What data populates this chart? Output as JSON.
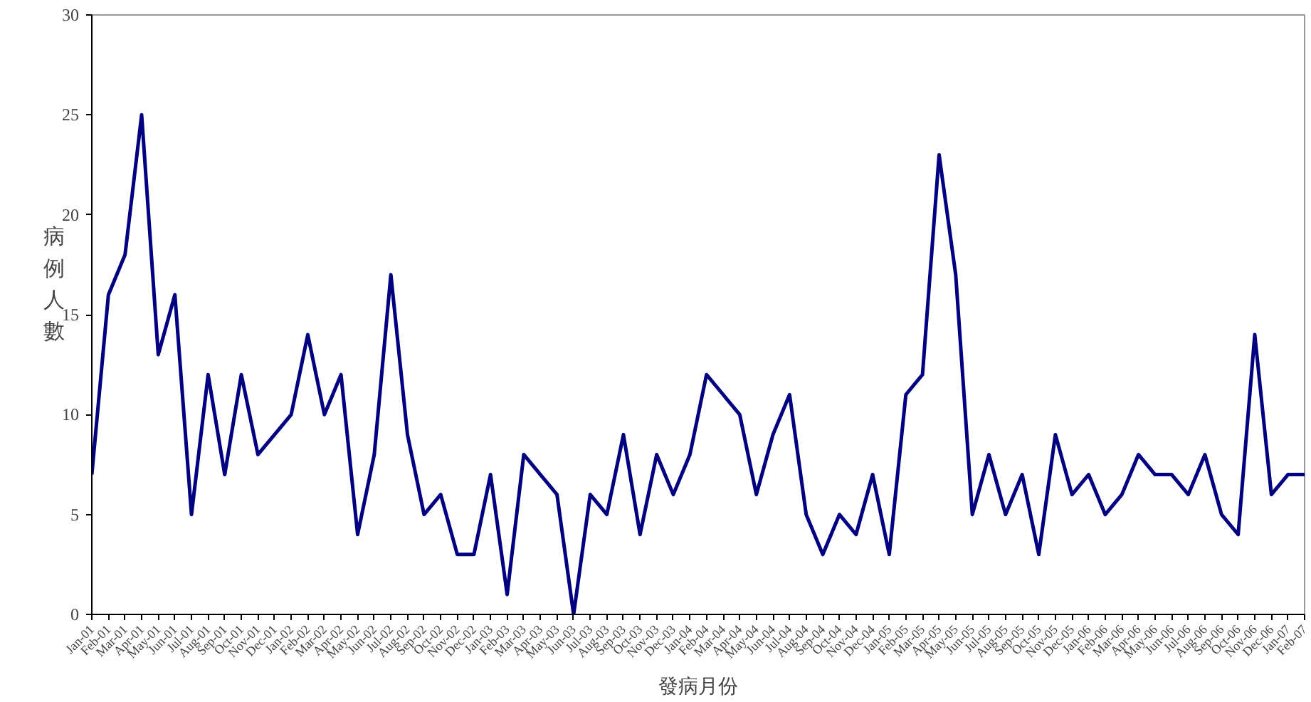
{
  "chart_data": {
    "type": "line",
    "xlabel": "發病月份",
    "ylabel": "病例人數",
    "categories": [
      "Jan-01",
      "Feb-01",
      "Mar-01",
      "Apr-01",
      "May-01",
      "Jun-01",
      "Jul-01",
      "Aug-01",
      "Sep-01",
      "Oct-01",
      "Nov-01",
      "Dec-01",
      "Jan-02",
      "Feb-02",
      "Mar-02",
      "Apr-02",
      "May-02",
      "Jun-02",
      "Jul-02",
      "Aug-02",
      "Sep-02",
      "Oct-02",
      "Nov-02",
      "Dec-02",
      "Jan-03",
      "Feb-03",
      "Mar-03",
      "Apr-03",
      "May-03",
      "Jun-03",
      "Jul-03",
      "Aug-03",
      "Sep-03",
      "Oct-03",
      "Nov-03",
      "Dec-03",
      "Jan-04",
      "Feb-04",
      "Mar-04",
      "Apr-04",
      "May-04",
      "Jun-04",
      "Jul-04",
      "Aug-04",
      "Sep-04",
      "Oct-04",
      "Nov-04",
      "Dec-04",
      "Jan-05",
      "Feb-05",
      "Mar-05",
      "Apr-05",
      "May-05",
      "Jun-05",
      "Jul-05",
      "Aug-05",
      "Sep-05",
      "Oct-05",
      "Nov-05",
      "Dec-05",
      "Jan-06",
      "Feb-06",
      "Mar-06",
      "Apr-06",
      "May-06",
      "Jun-06",
      "Jul-06",
      "Aug-06",
      "Sep-06",
      "Oct-06",
      "Nov-06",
      "Dec-06",
      "Jan-07",
      "Feb-07"
    ],
    "series": [
      {
        "color": "#000080",
        "values": [
          7,
          16,
          18,
          25,
          13,
          16,
          5,
          12,
          7,
          12,
          8,
          9,
          10,
          14,
          10,
          12,
          4,
          8,
          17,
          9,
          5,
          6,
          3,
          3,
          7,
          1,
          8,
          7,
          6,
          0,
          6,
          5,
          9,
          4,
          8,
          6,
          8,
          12,
          11,
          10,
          6,
          9,
          11,
          5,
          3,
          5,
          4,
          7,
          3,
          11,
          12,
          23,
          17,
          5,
          8,
          5,
          7,
          3,
          9,
          6,
          7,
          5,
          6,
          8,
          7,
          7,
          6,
          8,
          5,
          4,
          14,
          6,
          7,
          7
        ]
      }
    ],
    "ylim": [
      0,
      30
    ],
    "yticks": [
      0,
      5,
      10,
      15,
      20,
      25,
      30
    ],
    "grid": false,
    "marker": "none",
    "line_style": "solid"
  }
}
